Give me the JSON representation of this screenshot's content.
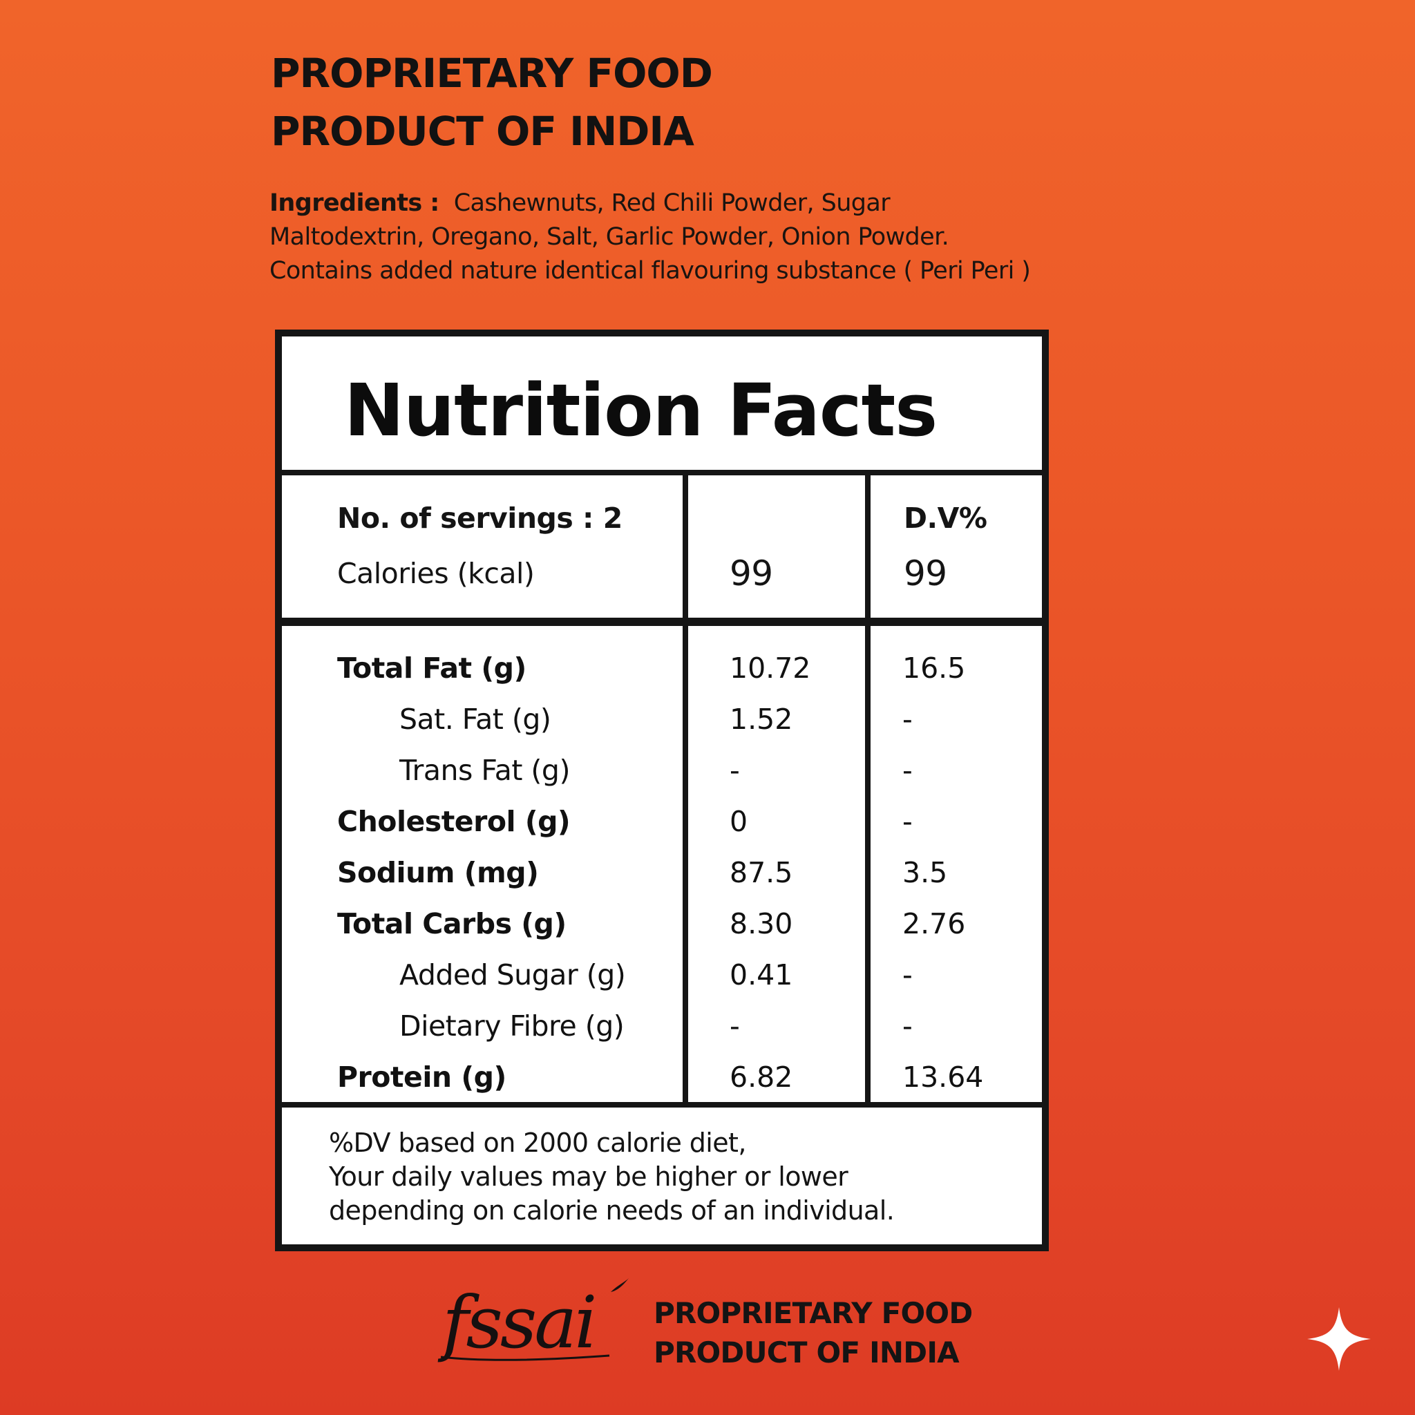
{
  "header": {
    "line1": "PROPRIETARY FOOD",
    "line2": "PRODUCT OF INDIA"
  },
  "ingredients": {
    "label": "Ingredients :",
    "line1": "Cashewnuts, Red Chili Powder, Sugar",
    "line2": "Maltodextrin, Oregano, Salt, Garlic Powder, Onion Powder.",
    "line3": "Contains added nature identical flavouring substance ( Peri Peri )"
  },
  "nutrition": {
    "title": "Nutrition Facts",
    "servings_label": "No. of servings : 2",
    "dv_header": "D.V%",
    "calories_label": "Calories (kcal)",
    "calories_value": "99",
    "calories_dv": "99",
    "rows": [
      {
        "name": "Total Fat (g)",
        "amount": "10.72",
        "dv": "16.5"
      },
      {
        "name": "Sat. Fat (g)",
        "amount": "1.52",
        "dv": "-"
      },
      {
        "name": "Trans Fat (g)",
        "amount": "-",
        "dv": "-"
      },
      {
        "name": "Cholesterol (g)",
        "amount": "0",
        "dv": "-"
      },
      {
        "name": "Sodium (mg)",
        "amount": "87.5",
        "dv": "3.5"
      },
      {
        "name": "Total Carbs (g)",
        "amount": "8.30",
        "dv": "2.76"
      },
      {
        "name": "Added Sugar (g)",
        "amount": "0.41",
        "dv": "-"
      },
      {
        "name": "Dietary Fibre (g)",
        "amount": "-",
        "dv": "-"
      },
      {
        "name": "Protein (g)",
        "amount": "6.82",
        "dv": "13.64"
      }
    ],
    "footnote": {
      "line1": "%DV based on 2000 calorie diet,",
      "line2": "Your daily values may be higher or lower",
      "line3": "depending on calorie needs of an individual."
    }
  },
  "footer": {
    "logo_text": "fssai",
    "line1": "PROPRIETARY FOOD",
    "line2": "PRODUCT OF INDIA"
  },
  "icons": {
    "logo": "fssai-logo",
    "corner": "sparkle-icon"
  },
  "colors": {
    "background_top": "#f0642a",
    "background_bottom": "#dd3b24",
    "panel": "#ffffff",
    "ink": "#151515"
  }
}
